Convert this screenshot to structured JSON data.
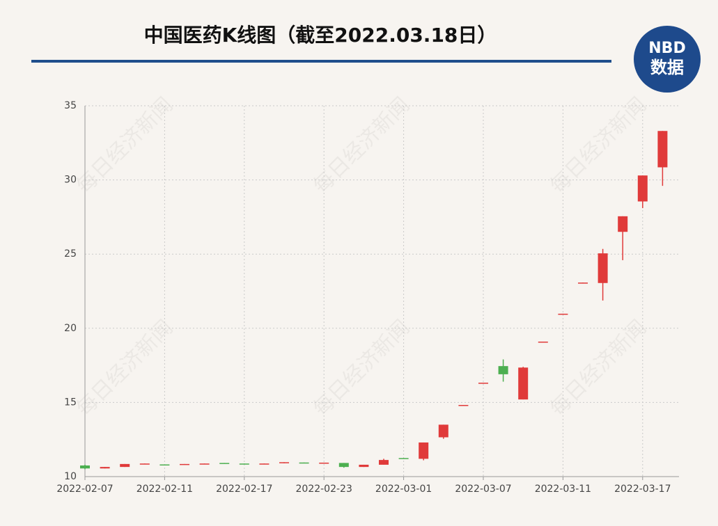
{
  "chart_data": {
    "type": "candlestick",
    "title": "中国医药K线图（截至2022.03.18日）",
    "logo": {
      "text": "NBD",
      "sub": "数据"
    },
    "watermark": "每日经济新闻",
    "categories": [
      "2022-02-07",
      null,
      null,
      null,
      "2022-02-11",
      null,
      null,
      null,
      "2022-02-17",
      null,
      null,
      null,
      "2022-02-23",
      null,
      null,
      null,
      "2022-03-01",
      null,
      null,
      null,
      "2022-03-07",
      null,
      null,
      null,
      "2022-03-11",
      null,
      null,
      null,
      "2022-03-17",
      null
    ],
    "open": [
      10.75,
      10.55,
      10.65,
      10.85,
      10.82,
      10.8,
      10.85,
      10.92,
      10.88,
      10.85,
      10.9,
      10.95,
      10.92,
      10.92,
      10.65,
      10.8,
      11.25,
      11.2,
      12.65,
      14.8,
      16.3,
      17.45,
      15.2,
      19.08,
      20.95,
      23.05,
      23.05,
      26.5,
      28.55,
      30.85
    ],
    "high": [
      10.8,
      10.65,
      10.85,
      10.88,
      10.82,
      10.85,
      10.88,
      10.92,
      10.88,
      10.88,
      10.97,
      10.95,
      10.94,
      10.92,
      10.8,
      11.2,
      11.25,
      12.3,
      13.5,
      14.83,
      16.33,
      17.9,
      17.4,
      19.1,
      20.98,
      23.08,
      25.35,
      27.55,
      30.3,
      33.3
    ],
    "low": [
      10.5,
      10.55,
      10.65,
      10.85,
      10.78,
      10.8,
      10.85,
      10.9,
      10.86,
      10.85,
      10.9,
      10.92,
      10.92,
      10.6,
      10.65,
      10.8,
      11.2,
      11.1,
      12.55,
      14.8,
      16.3,
      16.4,
      15.2,
      19.08,
      20.95,
      23.05,
      21.87,
      24.59,
      28.1,
      29.6
    ],
    "close": [
      10.55,
      10.65,
      10.85,
      10.88,
      10.78,
      10.85,
      10.88,
      10.9,
      10.86,
      10.88,
      10.97,
      10.92,
      10.94,
      10.65,
      10.8,
      11.12,
      11.2,
      12.3,
      13.5,
      14.83,
      16.33,
      16.9,
      17.35,
      19.1,
      20.98,
      23.08,
      25.05,
      27.55,
      30.3,
      33.3
    ],
    "up_color": "#e03a3a",
    "down_color": "#4caf50",
    "ylim": [
      10,
      35
    ],
    "yticks": [
      10,
      15,
      20,
      25,
      30,
      35
    ],
    "grid": true
  }
}
